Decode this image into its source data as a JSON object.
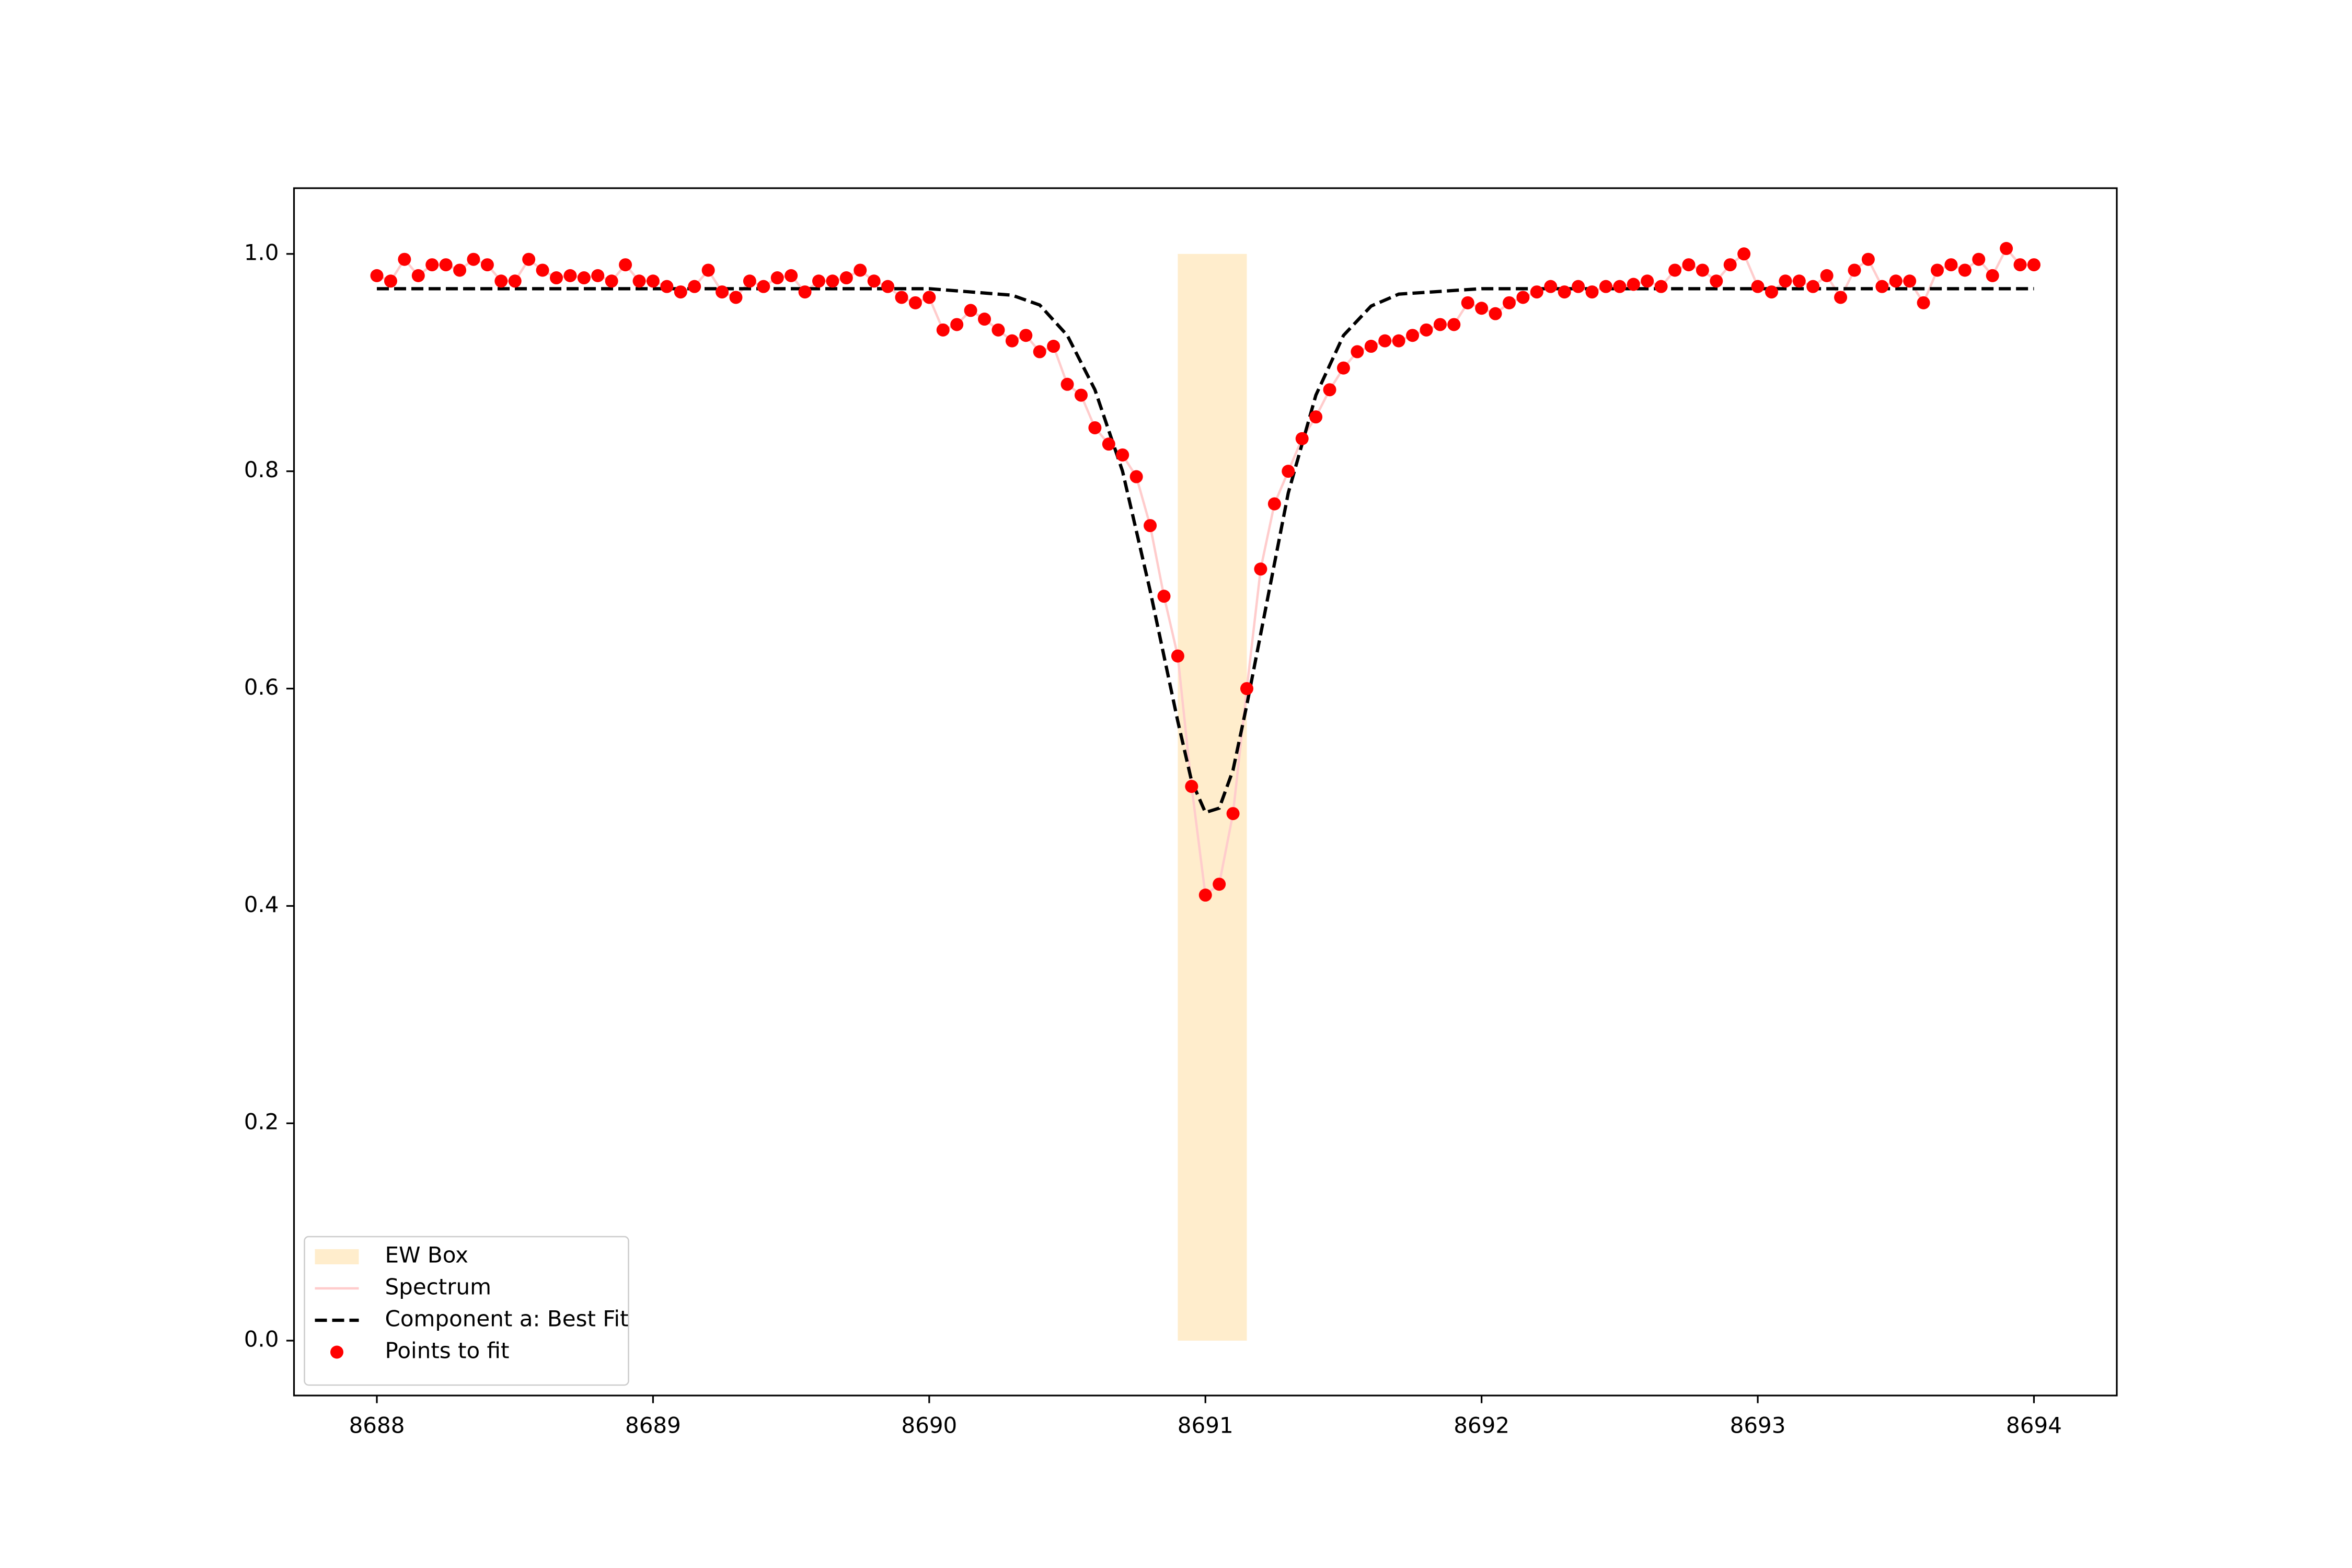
{
  "chart_data": {
    "type": "line",
    "xlim": [
      8687.7,
      8694.3
    ],
    "ylim": [
      -0.0505,
      1.0605
    ],
    "xticks": [
      8688,
      8689,
      8690,
      8691,
      8692,
      8693,
      8694
    ],
    "yticks": [
      {
        "value": 0,
        "label": "0.0"
      },
      0.2,
      0.4,
      0.6,
      0.8,
      {
        "value": 1,
        "label": "1.0"
      }
    ],
    "legend": "lower left",
    "spans": [
      {
        "name": "EW Box",
        "x": [
          8690.9,
          8691.15
        ],
        "y": [
          0,
          1
        ],
        "color": "#ffedcc"
      }
    ],
    "series": [
      {
        "name": "Spectrum",
        "style": "line",
        "color": "#ffcccc",
        "x": [
          8688.0,
          8688.05,
          8688.1,
          8688.15,
          8688.2,
          8688.25,
          8688.3,
          8688.35,
          8688.4,
          8688.45,
          8688.5,
          8688.55,
          8688.6,
          8688.65,
          8688.7,
          8688.75,
          8688.8,
          8688.85,
          8688.9,
          8688.95,
          8689.0,
          8689.05,
          8689.1,
          8689.15,
          8689.2,
          8689.25,
          8689.3,
          8689.35,
          8689.4,
          8689.45,
          8689.5,
          8689.55,
          8689.6,
          8689.65,
          8689.7,
          8689.75,
          8689.8,
          8689.85,
          8689.9,
          8689.95,
          8690.0,
          8690.05,
          8690.1,
          8690.15,
          8690.2,
          8690.25,
          8690.3,
          8690.35,
          8690.4,
          8690.45,
          8690.5,
          8690.55,
          8690.6,
          8690.65,
          8690.7,
          8690.75,
          8690.8,
          8690.85,
          8690.9,
          8690.95,
          8691.0,
          8691.05,
          8691.1,
          8691.15,
          8691.2,
          8691.25,
          8691.3,
          8691.35,
          8691.4,
          8691.45,
          8691.5,
          8691.55,
          8691.6,
          8691.65,
          8691.7,
          8691.75,
          8691.8,
          8691.85,
          8691.9,
          8691.95,
          8692.0,
          8692.05,
          8692.1,
          8692.15,
          8692.2,
          8692.25,
          8692.3,
          8692.35,
          8692.4,
          8692.45,
          8692.5,
          8692.55,
          8692.6,
          8692.65,
          8692.7,
          8692.75,
          8692.8,
          8692.85,
          8692.9,
          8692.95,
          8693.0,
          8693.05,
          8693.1,
          8693.15,
          8693.2,
          8693.25,
          8693.3,
          8693.35,
          8693.4,
          8693.45,
          8693.5,
          8693.55,
          8693.6,
          8693.65,
          8693.7,
          8693.75,
          8693.8,
          8693.85,
          8693.9,
          8693.95,
          8694.0
        ],
        "values": [
          0.98,
          0.975,
          0.995,
          0.98,
          0.99,
          0.99,
          0.985,
          0.995,
          0.99,
          0.975,
          0.975,
          0.995,
          0.985,
          0.978,
          0.98,
          0.978,
          0.98,
          0.975,
          0.99,
          0.975,
          0.975,
          0.97,
          0.965,
          0.97,
          0.985,
          0.965,
          0.96,
          0.975,
          0.97,
          0.978,
          0.98,
          0.965,
          0.975,
          0.975,
          0.978,
          0.985,
          0.975,
          0.97,
          0.96,
          0.955,
          0.96,
          0.93,
          0.935,
          0.948,
          0.94,
          0.93,
          0.92,
          0.925,
          0.91,
          0.915,
          0.88,
          0.87,
          0.84,
          0.825,
          0.815,
          0.795,
          0.75,
          0.685,
          0.63,
          0.51,
          0.41,
          0.42,
          0.485,
          0.6,
          0.71,
          0.77,
          0.8,
          0.83,
          0.85,
          0.875,
          0.895,
          0.91,
          0.915,
          0.92,
          0.92,
          0.925,
          0.93,
          0.935,
          0.935,
          0.955,
          0.95,
          0.945,
          0.955,
          0.96,
          0.965,
          0.97,
          0.965,
          0.97,
          0.965,
          0.97,
          0.97,
          0.972,
          0.975,
          0.97,
          0.985,
          0.99,
          0.985,
          0.975,
          0.99,
          1.0,
          0.97,
          0.965,
          0.975,
          0.975,
          0.97,
          0.98,
          0.96,
          0.985,
          0.995,
          0.97,
          0.975,
          0.975,
          0.955,
          0.985,
          0.99,
          0.985,
          0.995,
          0.98,
          1.005,
          0.99,
          0.99
        ]
      },
      {
        "name": "Component a: Best Fit",
        "style": "dashed",
        "color": "#000000",
        "x": [
          8688,
          8689,
          8690,
          8690.3,
          8690.4,
          8690.5,
          8690.6,
          8690.7,
          8690.8,
          8690.9,
          8690.95,
          8691.0,
          8691.05,
          8691.1,
          8691.15,
          8691.2,
          8691.3,
          8691.4,
          8691.5,
          8691.6,
          8691.7,
          8692,
          8693,
          8694
        ],
        "values": [
          0.968,
          0.968,
          0.968,
          0.962,
          0.953,
          0.925,
          0.875,
          0.8,
          0.69,
          0.57,
          0.515,
          0.486,
          0.49,
          0.525,
          0.585,
          0.65,
          0.78,
          0.87,
          0.925,
          0.952,
          0.963,
          0.968,
          0.968,
          0.968
        ]
      },
      {
        "name": "Points to fit",
        "style": "scatter",
        "color": "#ff0000",
        "x": [
          8688.0,
          8688.05,
          8688.1,
          8688.15,
          8688.2,
          8688.25,
          8688.3,
          8688.35,
          8688.4,
          8688.45,
          8688.5,
          8688.55,
          8688.6,
          8688.65,
          8688.7,
          8688.75,
          8688.8,
          8688.85,
          8688.9,
          8688.95,
          8689.0,
          8689.05,
          8689.1,
          8689.15,
          8689.2,
          8689.25,
          8689.3,
          8689.35,
          8689.4,
          8689.45,
          8689.5,
          8689.55,
          8689.6,
          8689.65,
          8689.7,
          8689.75,
          8689.8,
          8689.85,
          8689.9,
          8689.95,
          8690.0,
          8690.05,
          8690.1,
          8690.15,
          8690.2,
          8690.25,
          8690.3,
          8690.35,
          8690.4,
          8690.45,
          8690.5,
          8690.55,
          8690.6,
          8690.65,
          8690.7,
          8690.75,
          8690.8,
          8690.85,
          8690.9,
          8690.95,
          8691.0,
          8691.05,
          8691.1,
          8691.15,
          8691.2,
          8691.25,
          8691.3,
          8691.35,
          8691.4,
          8691.45,
          8691.5,
          8691.55,
          8691.6,
          8691.65,
          8691.7,
          8691.75,
          8691.8,
          8691.85,
          8691.9,
          8691.95,
          8692.0,
          8692.05,
          8692.1,
          8692.15,
          8692.2,
          8692.25,
          8692.3,
          8692.35,
          8692.4,
          8692.45,
          8692.5,
          8692.55,
          8692.6,
          8692.65,
          8692.7,
          8692.75,
          8692.8,
          8692.85,
          8692.9,
          8692.95,
          8693.0,
          8693.05,
          8693.1,
          8693.15,
          8693.2,
          8693.25,
          8693.3,
          8693.35,
          8693.4,
          8693.45,
          8693.5,
          8693.55,
          8693.6,
          8693.65,
          8693.7,
          8693.75,
          8693.8,
          8693.85,
          8693.9,
          8693.95,
          8694.0
        ],
        "values": [
          0.98,
          0.975,
          0.995,
          0.98,
          0.99,
          0.99,
          0.985,
          0.995,
          0.99,
          0.975,
          0.975,
          0.995,
          0.985,
          0.978,
          0.98,
          0.978,
          0.98,
          0.975,
          0.99,
          0.975,
          0.975,
          0.97,
          0.965,
          0.97,
          0.985,
          0.965,
          0.96,
          0.975,
          0.97,
          0.978,
          0.98,
          0.965,
          0.975,
          0.975,
          0.978,
          0.985,
          0.975,
          0.97,
          0.96,
          0.955,
          0.96,
          0.93,
          0.935,
          0.948,
          0.94,
          0.93,
          0.92,
          0.925,
          0.91,
          0.915,
          0.88,
          0.87,
          0.84,
          0.825,
          0.815,
          0.795,
          0.75,
          0.685,
          0.63,
          0.51,
          0.41,
          0.42,
          0.485,
          0.6,
          0.71,
          0.77,
          0.8,
          0.83,
          0.85,
          0.875,
          0.895,
          0.91,
          0.915,
          0.92,
          0.92,
          0.925,
          0.93,
          0.935,
          0.935,
          0.955,
          0.95,
          0.945,
          0.955,
          0.96,
          0.965,
          0.97,
          0.965,
          0.97,
          0.965,
          0.97,
          0.97,
          0.972,
          0.975,
          0.97,
          0.985,
          0.99,
          0.985,
          0.975,
          0.99,
          1.0,
          0.97,
          0.965,
          0.975,
          0.975,
          0.97,
          0.98,
          0.96,
          0.985,
          0.995,
          0.97,
          0.975,
          0.975,
          0.955,
          0.985,
          0.99,
          0.985,
          0.995,
          0.98,
          1.005,
          0.99,
          0.99
        ]
      }
    ]
  }
}
